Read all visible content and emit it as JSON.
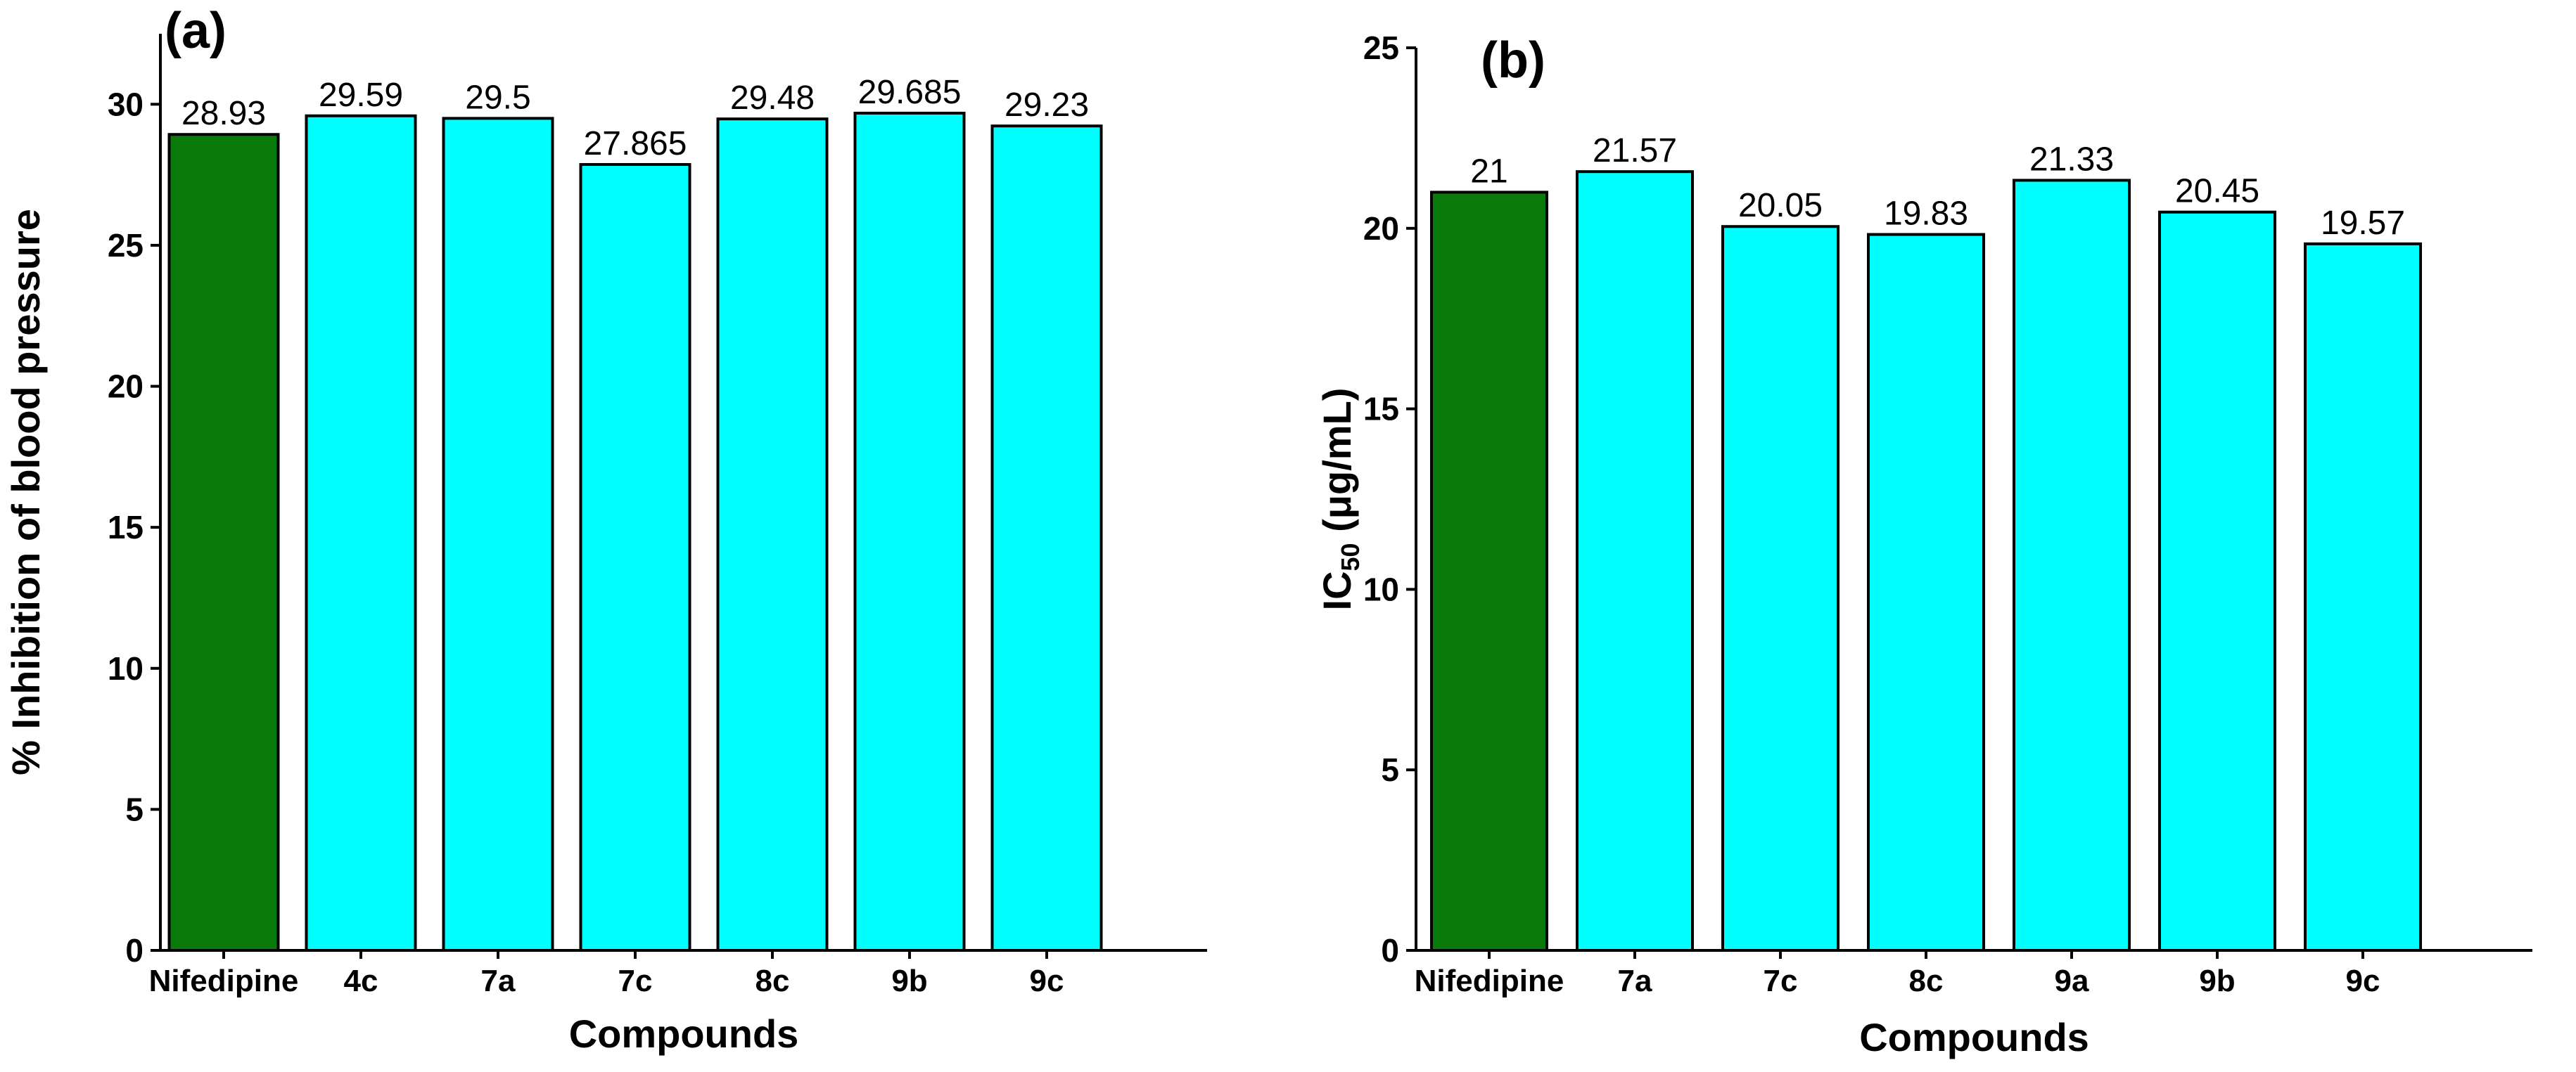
{
  "chart_data": [
    {
      "type": "bar",
      "panel_label": "(a)",
      "categories": [
        "Nifedipine",
        "4c",
        "7a",
        "7c",
        "8c",
        "9b",
        "9c"
      ],
      "values": [
        28.93,
        29.59,
        29.5,
        27.865,
        29.48,
        29.685,
        29.23
      ],
      "value_labels": [
        "28.93",
        "29.59",
        "29.5",
        "27.865",
        "29.48",
        "29.685",
        "29.23"
      ],
      "bar_colors": [
        "#0a7a0a",
        "#00ffff",
        "#00ffff",
        "#00ffff",
        "#00ffff",
        "#00ffff",
        "#00ffff"
      ],
      "xlabel": "Compounds",
      "ylabel": "% Inhibition of blood pressure",
      "ylabel_sub": "",
      "ylabel_suffix": "",
      "ylim": [
        0,
        32.5
      ],
      "yticks": [
        0,
        5,
        10,
        15,
        20,
        25,
        30
      ],
      "grid": false,
      "legend": "none"
    },
    {
      "type": "bar",
      "panel_label": "(b)",
      "categories": [
        "Nifedipine",
        "7a",
        "7c",
        "8c",
        "9a",
        "9b",
        "9c"
      ],
      "values": [
        21,
        21.57,
        20.05,
        19.83,
        21.33,
        20.45,
        19.57
      ],
      "value_labels": [
        "21",
        "21.57",
        "20.05",
        "19.83",
        "21.33",
        "20.45",
        "19.57"
      ],
      "bar_colors": [
        "#0a7a0a",
        "#00ffff",
        "#00ffff",
        "#00ffff",
        "#00ffff",
        "#00ffff",
        "#00ffff"
      ],
      "xlabel": "Compounds",
      "ylabel": "IC",
      "ylabel_sub": "50",
      "ylabel_suffix": " (μg/mL)",
      "ylim": [
        0,
        25
      ],
      "yticks": [
        0,
        5,
        10,
        15,
        20,
        25
      ],
      "grid": false,
      "legend": "none"
    }
  ]
}
